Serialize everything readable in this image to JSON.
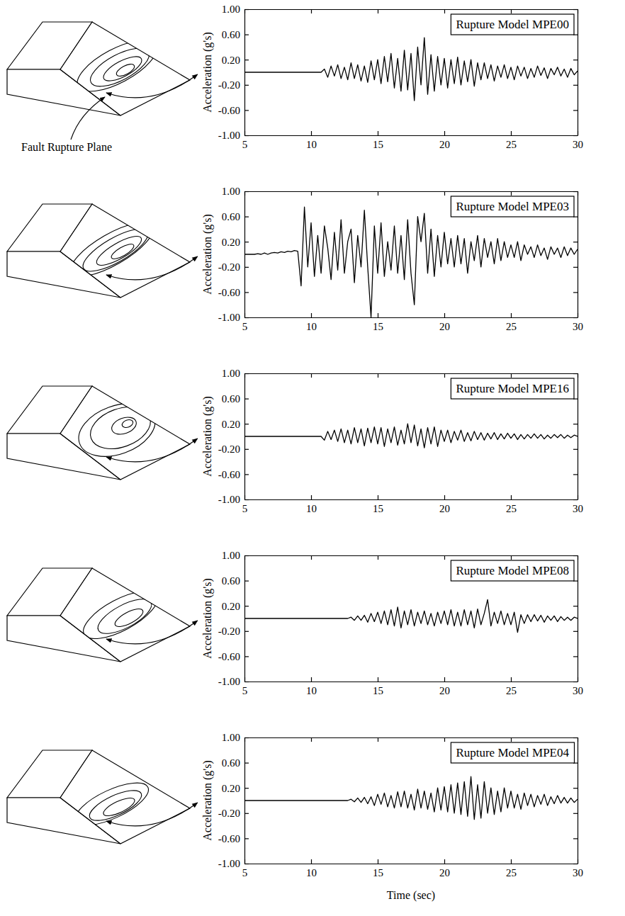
{
  "chart_data": [
    {
      "type": "line",
      "title": "Rupture Model MPE00",
      "y_label": "Acceleration (g's)",
      "annotation": "Fault Rupture Plane",
      "color": "#000000",
      "xlim": [
        5,
        30
      ],
      "ylim": [
        -1,
        1
      ],
      "xticks": [
        5,
        10,
        15,
        20,
        25,
        30
      ],
      "yticks": [
        {
          "value": -1,
          "label": "-1.00"
        },
        {
          "value": -0.6,
          "label": "-0.60"
        },
        {
          "value": -0.2,
          "label": "-0.20"
        },
        {
          "value": 0.2,
          "label": "0.20"
        },
        {
          "value": 0.6,
          "label": "0.60"
        },
        {
          "value": 1,
          "label": "1.00"
        }
      ],
      "x": [
        5,
        5.25,
        5.5,
        5.75,
        6,
        6.25,
        6.5,
        6.75,
        7,
        7.25,
        7.5,
        7.75,
        8,
        8.25,
        8.5,
        8.75,
        9,
        9.25,
        9.5,
        9.75,
        10,
        10.25,
        10.5,
        10.75,
        11,
        11.25,
        11.5,
        11.75,
        12,
        12.25,
        12.5,
        12.75,
        13,
        13.25,
        13.5,
        13.75,
        14,
        14.25,
        14.5,
        14.75,
        15,
        15.25,
        15.5,
        15.75,
        16,
        16.25,
        16.5,
        16.75,
        17,
        17.25,
        17.5,
        17.75,
        18,
        18.25,
        18.5,
        18.75,
        19,
        19.25,
        19.5,
        19.75,
        20,
        20.25,
        20.5,
        20.75,
        21,
        21.25,
        21.5,
        21.75,
        22,
        22.25,
        22.5,
        22.75,
        23,
        23.25,
        23.5,
        23.75,
        24,
        24.25,
        24.5,
        24.75,
        25,
        25.25,
        25.5,
        25.75,
        26,
        26.25,
        26.5,
        26.75,
        27,
        27.25,
        27.5,
        27.75,
        28,
        28.25,
        28.5,
        28.75,
        29,
        29.25,
        29.5,
        29.75,
        30
      ],
      "values": [
        0,
        0,
        0,
        0,
        0,
        0,
        0,
        0,
        0,
        0,
        0,
        0,
        0,
        0,
        0,
        0,
        0,
        0,
        0,
        0,
        0,
        0,
        0,
        0,
        0.05,
        -0.08,
        0.1,
        -0.06,
        0.12,
        -0.1,
        0.08,
        -0.12,
        0.15,
        -0.1,
        0.12,
        -0.14,
        0.1,
        -0.16,
        0.18,
        -0.12,
        0.2,
        -0.18,
        0.25,
        -0.15,
        0.3,
        -0.25,
        0.22,
        -0.3,
        0.35,
        -0.28,
        0.3,
        -0.45,
        0.4,
        -0.2,
        0.55,
        -0.35,
        0.28,
        -0.3,
        0.25,
        -0.2,
        0.22,
        -0.25,
        0.2,
        -0.18,
        0.24,
        -0.2,
        0.18,
        -0.15,
        0.2,
        -0.22,
        0.15,
        -0.12,
        0.15,
        -0.1,
        0.12,
        -0.14,
        0.1,
        -0.08,
        0.12,
        -0.1,
        0.08,
        -0.12,
        0.1,
        -0.06,
        0.08,
        -0.1,
        0.06,
        -0.08,
        0.1,
        -0.05,
        0.07,
        -0.1,
        0.06,
        -0.04,
        0.08,
        -0.06,
        0.05,
        -0.08,
        0.06,
        -0.04,
        0.02
      ]
    },
    {
      "type": "line",
      "title": "Rupture Model MPE03",
      "y_label": "Acceleration (g's)",
      "color": "#000000",
      "xlim": [
        5,
        30
      ],
      "ylim": [
        -1,
        1
      ],
      "xticks": [
        5,
        10,
        15,
        20,
        25,
        30
      ],
      "yticks": [
        {
          "value": -1,
          "label": "-1.00"
        },
        {
          "value": -0.6,
          "label": "-0.60"
        },
        {
          "value": -0.2,
          "label": "-0.20"
        },
        {
          "value": 0.2,
          "label": "0.20"
        },
        {
          "value": 0.6,
          "label": "0.60"
        },
        {
          "value": 1,
          "label": "1.00"
        }
      ],
      "x": [
        5,
        5.25,
        5.5,
        5.75,
        6,
        6.25,
        6.5,
        6.75,
        7,
        7.25,
        7.5,
        7.75,
        8,
        8.25,
        8.5,
        8.75,
        9,
        9.25,
        9.5,
        9.75,
        10,
        10.25,
        10.5,
        10.75,
        11,
        11.25,
        11.5,
        11.75,
        12,
        12.25,
        12.5,
        12.75,
        13,
        13.25,
        13.5,
        13.75,
        14,
        14.25,
        14.5,
        14.75,
        15,
        15.25,
        15.5,
        15.75,
        16,
        16.25,
        16.5,
        16.75,
        17,
        17.25,
        17.5,
        17.75,
        18,
        18.25,
        18.5,
        18.75,
        19,
        19.25,
        19.5,
        19.75,
        20,
        20.25,
        20.5,
        20.75,
        21,
        21.25,
        21.5,
        21.75,
        22,
        22.25,
        22.5,
        22.75,
        23,
        23.25,
        23.5,
        23.75,
        24,
        24.25,
        24.5,
        24.75,
        25,
        25.25,
        25.5,
        25.75,
        26,
        26.25,
        26.5,
        26.75,
        27,
        27.25,
        27.5,
        27.75,
        28,
        28.25,
        28.5,
        28.75,
        29,
        29.25,
        29.5,
        29.75,
        30
      ],
      "values": [
        0,
        0,
        0,
        0,
        0.01,
        0,
        0.02,
        0,
        0.02,
        0.03,
        0.02,
        0.04,
        0.03,
        0.05,
        0.04,
        0.06,
        0.05,
        -0.5,
        0.75,
        -0.2,
        0.5,
        -0.35,
        0.3,
        -0.3,
        0.45,
        0.1,
        -0.4,
        0.35,
        -0.25,
        0.55,
        -0.3,
        0.2,
        0.4,
        -0.45,
        0.3,
        -0.2,
        0.7,
        -0.2,
        -1.0,
        0.45,
        -0.3,
        0.5,
        -0.35,
        0.2,
        -0.25,
        0.45,
        -0.3,
        0.3,
        -0.4,
        0.55,
        -0.3,
        -0.8,
        0.6,
        0.2,
        0.65,
        -0.3,
        0.4,
        -0.35,
        0.3,
        -0.2,
        0.35,
        -0.15,
        0.25,
        -0.2,
        0.3,
        -0.15,
        0.25,
        -0.3,
        0.2,
        -0.1,
        0.3,
        -0.2,
        0.25,
        -0.05,
        0.2,
        -0.15,
        0.25,
        -0.1,
        0.2,
        -0.05,
        0.15,
        -0.05,
        0.2,
        -0.1,
        0.15,
        0.0,
        0.12,
        -0.05,
        0.15,
        -0.02,
        0.1,
        -0.08,
        0.12,
        0.0,
        0.1,
        -0.05,
        0.12,
        -0.02,
        0.1,
        0.0,
        0.08
      ]
    },
    {
      "type": "line",
      "title": "Rupture Model MPE16",
      "y_label": "Acceleration (g's)",
      "color": "#000000",
      "xlim": [
        5,
        30
      ],
      "ylim": [
        -1,
        1
      ],
      "xticks": [
        5,
        10,
        15,
        20,
        25,
        30
      ],
      "yticks": [
        {
          "value": -1,
          "label": "-1.00"
        },
        {
          "value": -0.6,
          "label": "-0.60"
        },
        {
          "value": -0.2,
          "label": "-0.20"
        },
        {
          "value": 0.2,
          "label": "0.20"
        },
        {
          "value": 0.6,
          "label": "0.60"
        },
        {
          "value": 1,
          "label": "1.00"
        }
      ],
      "x": [
        5,
        5.25,
        5.5,
        5.75,
        6,
        6.25,
        6.5,
        6.75,
        7,
        7.25,
        7.5,
        7.75,
        8,
        8.25,
        8.5,
        8.75,
        9,
        9.25,
        9.5,
        9.75,
        10,
        10.25,
        10.5,
        10.75,
        11,
        11.25,
        11.5,
        11.75,
        12,
        12.25,
        12.5,
        12.75,
        13,
        13.25,
        13.5,
        13.75,
        14,
        14.25,
        14.5,
        14.75,
        15,
        15.25,
        15.5,
        15.75,
        16,
        16.25,
        16.5,
        16.75,
        17,
        17.25,
        17.5,
        17.75,
        18,
        18.25,
        18.5,
        18.75,
        19,
        19.25,
        19.5,
        19.75,
        20,
        20.25,
        20.5,
        20.75,
        21,
        21.25,
        21.5,
        21.75,
        22,
        22.25,
        22.5,
        22.75,
        23,
        23.25,
        23.5,
        23.75,
        24,
        24.25,
        24.5,
        24.75,
        25,
        25.25,
        25.5,
        25.75,
        26,
        26.25,
        26.5,
        26.75,
        27,
        27.25,
        27.5,
        27.75,
        28,
        28.25,
        28.5,
        28.75,
        29,
        29.25,
        29.5,
        29.75,
        30
      ],
      "values": [
        0,
        0,
        0,
        0,
        0,
        0,
        0,
        0,
        0,
        0,
        0,
        0,
        0,
        0,
        0,
        0,
        0,
        0,
        0,
        0,
        0,
        0,
        0,
        0,
        -0.06,
        0.08,
        -0.05,
        0.1,
        -0.08,
        0.12,
        -0.1,
        0.1,
        -0.12,
        0.14,
        -0.1,
        0.12,
        -0.15,
        0.13,
        -0.1,
        0.15,
        -0.12,
        0.14,
        -0.16,
        0.12,
        -0.1,
        0.15,
        -0.14,
        0.1,
        -0.12,
        0.2,
        -0.1,
        0.18,
        -0.15,
        0.12,
        -0.18,
        0.14,
        -0.12,
        0.15,
        -0.16,
        0.1,
        -0.08,
        0.1,
        -0.1,
        0.08,
        -0.06,
        0.1,
        -0.08,
        0.06,
        -0.07,
        0.08,
        -0.05,
        0.06,
        -0.06,
        0.05,
        -0.04,
        0.06,
        -0.05,
        0.04,
        -0.04,
        0.05,
        -0.03,
        0.04,
        -0.05,
        0.03,
        -0.04,
        0.03,
        -0.03,
        0.04,
        -0.03,
        0.03,
        -0.04,
        0.02,
        -0.03,
        0.03,
        -0.02,
        0.03,
        -0.03,
        0.02,
        -0.02,
        0.02,
        0
      ]
    },
    {
      "type": "line",
      "title": "Rupture Model MPE08",
      "y_label": "Acceleration (g's)",
      "color": "#000000",
      "xlim": [
        5,
        30
      ],
      "ylim": [
        -1,
        1
      ],
      "xticks": [
        5,
        10,
        15,
        20,
        25,
        30
      ],
      "yticks": [
        {
          "value": -1,
          "label": "-1.00"
        },
        {
          "value": -0.6,
          "label": "-0.60"
        },
        {
          "value": -0.2,
          "label": "-0.20"
        },
        {
          "value": 0.2,
          "label": "0.20"
        },
        {
          "value": 0.6,
          "label": "0.60"
        },
        {
          "value": 1,
          "label": "1.00"
        }
      ],
      "x": [
        5,
        5.25,
        5.5,
        5.75,
        6,
        6.25,
        6.5,
        6.75,
        7,
        7.25,
        7.5,
        7.75,
        8,
        8.25,
        8.5,
        8.75,
        9,
        9.25,
        9.5,
        9.75,
        10,
        10.25,
        10.5,
        10.75,
        11,
        11.25,
        11.5,
        11.75,
        12,
        12.25,
        12.5,
        12.75,
        13,
        13.25,
        13.5,
        13.75,
        14,
        14.25,
        14.5,
        14.75,
        15,
        15.25,
        15.5,
        15.75,
        16,
        16.25,
        16.5,
        16.75,
        17,
        17.25,
        17.5,
        17.75,
        18,
        18.25,
        18.5,
        18.75,
        19,
        19.25,
        19.5,
        19.75,
        20,
        20.25,
        20.5,
        20.75,
        21,
        21.25,
        21.5,
        21.75,
        22,
        22.25,
        22.5,
        22.75,
        23,
        23.25,
        23.5,
        23.75,
        24,
        24.25,
        24.5,
        24.75,
        25,
        25.25,
        25.5,
        25.75,
        26,
        26.25,
        26.5,
        26.75,
        27,
        27.25,
        27.5,
        27.75,
        28,
        28.25,
        28.5,
        28.75,
        29,
        29.25,
        29.5,
        29.75,
        30
      ],
      "values": [
        0,
        0,
        0,
        0,
        0,
        0,
        0,
        0,
        0,
        0,
        0,
        0,
        0,
        0,
        0,
        0,
        0,
        0,
        0,
        0,
        0,
        0,
        0,
        0,
        0,
        0,
        0,
        0,
        0,
        0,
        0,
        0,
        0.02,
        -0.03,
        0.04,
        -0.03,
        0.05,
        -0.06,
        0.08,
        -0.05,
        0.1,
        -0.08,
        0.12,
        -0.1,
        0.14,
        -0.12,
        0.18,
        -0.15,
        0.12,
        -0.1,
        0.14,
        -0.12,
        0.1,
        -0.08,
        0.12,
        -0.1,
        0.08,
        -0.12,
        0.1,
        -0.08,
        0.12,
        -0.1,
        0.14,
        -0.12,
        0.1,
        -0.12,
        0.14,
        -0.1,
        0.12,
        -0.15,
        0.15,
        -0.1,
        0.08,
        0.3,
        -0.12,
        0.1,
        -0.08,
        0.12,
        -0.1,
        0.08,
        -0.1,
        0.1,
        -0.22,
        0.06,
        -0.08,
        0.06,
        -0.05,
        0.06,
        -0.04,
        0.05,
        -0.06,
        0.04,
        -0.03,
        0.04,
        -0.05,
        0.03,
        -0.03,
        0.02,
        -0.03,
        0.02,
        0
      ]
    },
    {
      "type": "line",
      "title": "Rupture Model MPE04",
      "y_label": "Acceleration (g's)",
      "x_label": "Time (sec)",
      "color": "#000000",
      "xlim": [
        5,
        30
      ],
      "ylim": [
        -1,
        1
      ],
      "xticks": [
        5,
        10,
        15,
        20,
        25,
        30
      ],
      "yticks": [
        {
          "value": -1,
          "label": "-1.00"
        },
        {
          "value": -0.6,
          "label": "-0.60"
        },
        {
          "value": -0.2,
          "label": "-0.20"
        },
        {
          "value": 0.2,
          "label": "0.20"
        },
        {
          "value": 0.6,
          "label": "0.60"
        },
        {
          "value": 1,
          "label": "1.00"
        }
      ],
      "x": [
        5,
        5.25,
        5.5,
        5.75,
        6,
        6.25,
        6.5,
        6.75,
        7,
        7.25,
        7.5,
        7.75,
        8,
        8.25,
        8.5,
        8.75,
        9,
        9.25,
        9.5,
        9.75,
        10,
        10.25,
        10.5,
        10.75,
        11,
        11.25,
        11.5,
        11.75,
        12,
        12.25,
        12.5,
        12.75,
        13,
        13.25,
        13.5,
        13.75,
        14,
        14.25,
        14.5,
        14.75,
        15,
        15.25,
        15.5,
        15.75,
        16,
        16.25,
        16.5,
        16.75,
        17,
        17.25,
        17.5,
        17.75,
        18,
        18.25,
        18.5,
        18.75,
        19,
        19.25,
        19.5,
        19.75,
        20,
        20.25,
        20.5,
        20.75,
        21,
        21.25,
        21.5,
        21.75,
        22,
        22.25,
        22.5,
        22.75,
        23,
        23.25,
        23.5,
        23.75,
        24,
        24.25,
        24.5,
        24.75,
        25,
        25.25,
        25.5,
        25.75,
        26,
        26.25,
        26.5,
        26.75,
        27,
        27.25,
        27.5,
        27.75,
        28,
        28.25,
        28.5,
        28.75,
        29,
        29.25,
        29.5,
        29.75,
        30
      ],
      "values": [
        0,
        0,
        0,
        0,
        0,
        0,
        0,
        0,
        0,
        0,
        0,
        0,
        0,
        0,
        0,
        0,
        0,
        0,
        0,
        0,
        0,
        0,
        0,
        0,
        0,
        0,
        0,
        0,
        0,
        0,
        0,
        0,
        0.02,
        -0.02,
        0.04,
        -0.03,
        0.05,
        -0.05,
        0.06,
        -0.08,
        0.1,
        -0.06,
        0.12,
        -0.1,
        0.08,
        -0.12,
        0.14,
        -0.1,
        0.15,
        -0.12,
        0.1,
        -0.15,
        0.18,
        -0.12,
        0.15,
        -0.14,
        0.12,
        -0.18,
        0.2,
        -0.15,
        0.22,
        -0.18,
        0.25,
        -0.2,
        0.28,
        -0.22,
        0.3,
        -0.25,
        0.38,
        -0.3,
        0.25,
        -0.28,
        0.3,
        -0.2,
        0.2,
        -0.22,
        0.15,
        -0.18,
        0.2,
        -0.12,
        0.15,
        -0.12,
        0.1,
        -0.14,
        0.12,
        -0.08,
        0.1,
        -0.1,
        0.08,
        -0.06,
        0.1,
        -0.08,
        0.06,
        -0.05,
        0.08,
        -0.04,
        0.05,
        -0.04,
        0.04,
        -0.03,
        0.02
      ]
    }
  ]
}
